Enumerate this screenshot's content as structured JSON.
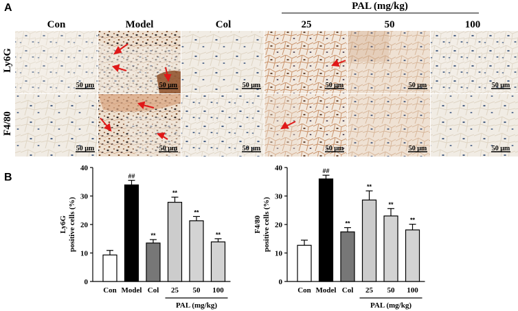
{
  "panel_a": {
    "letter": "A",
    "group_header": "PAL (mg/kg)",
    "columns": [
      "Con",
      "Model",
      "Col",
      "25",
      "50",
      "100"
    ],
    "rows": [
      "Ly6G",
      "F4/80"
    ],
    "scale_bar": "50 μm",
    "colors": {
      "tissue_bg": "#f1ece4",
      "cell_wall": "#e4dccf",
      "nucleus": "#3f5778",
      "stain_brown": "#9a5a2e",
      "arrow": "#e01818"
    }
  },
  "panel_b": {
    "letter": "B"
  },
  "chart_data": [
    {
      "type": "bar",
      "categories": [
        "Con",
        "Model",
        "Col",
        "25",
        "50",
        "100"
      ],
      "values": [
        9.3,
        33.9,
        13.5,
        27.8,
        21.3,
        13.9
      ],
      "errors": [
        1.6,
        1.6,
        1.2,
        1.8,
        1.5,
        1.1
      ],
      "significance": [
        "",
        "##",
        "**",
        "**",
        "**",
        "**"
      ],
      "bar_colors": [
        "#ffffff",
        "#000000",
        "#777777",
        "#cccccc",
        "#d3d3d3",
        "#d3d3d3"
      ],
      "ylabel_line1": "Ly6G",
      "ylabel_line2": "positive cells (%)",
      "ylim": [
        0,
        40
      ],
      "yticks": [
        "0",
        "10",
        "20",
        "30",
        "40"
      ],
      "group_label": "PAL (mg/kg)",
      "grid": false
    },
    {
      "type": "bar",
      "categories": [
        "Con",
        "Model",
        "Col",
        "25",
        "50",
        "100"
      ],
      "values": [
        12.7,
        36.0,
        17.4,
        28.6,
        23.0,
        18.1
      ],
      "errors": [
        1.8,
        1.3,
        1.5,
        3.2,
        2.6,
        2.0
      ],
      "significance": [
        "",
        "##",
        "**",
        "**",
        "**",
        "**"
      ],
      "bar_colors": [
        "#ffffff",
        "#000000",
        "#777777",
        "#cccccc",
        "#d3d3d3",
        "#d3d3d3"
      ],
      "ylabel_line1": "F4/80",
      "ylabel_line2": "positive cells (%)",
      "ylim": [
        0,
        40
      ],
      "yticks": [
        "0",
        "10",
        "20",
        "30",
        "40"
      ],
      "group_label": "PAL (mg/kg)",
      "grid": false
    }
  ]
}
